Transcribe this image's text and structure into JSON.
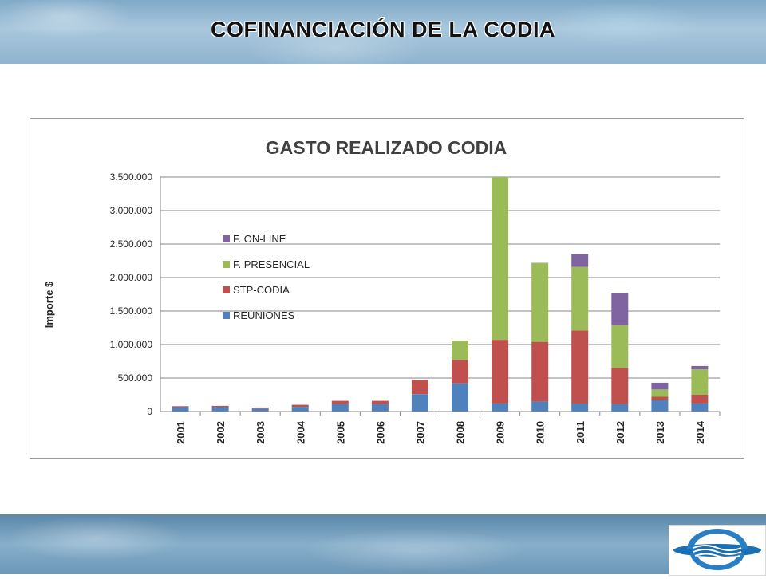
{
  "slide": {
    "title": "COFINANCIACIÓN  DE LA CODIA"
  },
  "colors": {
    "REUNIONES": "#4f81bd",
    "STP-CODIA": "#c0504d",
    "F. PRESENCIAL": "#9bbb59",
    "F. ON-LINE": "#8064a2"
  },
  "chart_data": {
    "type": "bar",
    "stacked": true,
    "title": "GASTO REALIZADO CODIA",
    "xlabel": "",
    "ylabel": "Importe $",
    "ylim": [
      0,
      3500000
    ],
    "yticks": [
      0,
      500000,
      1000000,
      1500000,
      2000000,
      2500000,
      3000000,
      3500000
    ],
    "ytick_labels": [
      "0",
      "500.000",
      "1.000.000",
      "1.500.000",
      "2.000.000",
      "2.500.000",
      "3.000.000",
      "3.500.000"
    ],
    "grid": true,
    "legend_position": "upper-left inside plot",
    "categories": [
      "2001",
      "2002",
      "2003",
      "2004",
      "2005",
      "2006",
      "2007",
      "2008",
      "2009",
      "2010",
      "2011",
      "2012",
      "2013",
      "2014"
    ],
    "series": [
      {
        "name": "REUNIONES",
        "values": [
          65000,
          65000,
          45000,
          70000,
          110000,
          110000,
          260000,
          420000,
          120000,
          150000,
          120000,
          110000,
          170000,
          120000
        ]
      },
      {
        "name": "STP-CODIA",
        "values": [
          15000,
          20000,
          15000,
          30000,
          50000,
          50000,
          210000,
          350000,
          950000,
          890000,
          1090000,
          540000,
          50000,
          130000
        ]
      },
      {
        "name": "F. PRESENCIAL",
        "values": [
          0,
          0,
          0,
          0,
          0,
          0,
          0,
          290000,
          2430000,
          1180000,
          950000,
          640000,
          110000,
          380000
        ]
      },
      {
        "name": "F. ON-LINE",
        "values": [
          0,
          0,
          0,
          0,
          0,
          0,
          0,
          0,
          0,
          0,
          190000,
          480000,
          100000,
          50000
        ]
      }
    ],
    "legend_order": [
      "F. ON-LINE",
      "F. PRESENCIAL",
      "STP-CODIA",
      "REUNIONES"
    ]
  }
}
